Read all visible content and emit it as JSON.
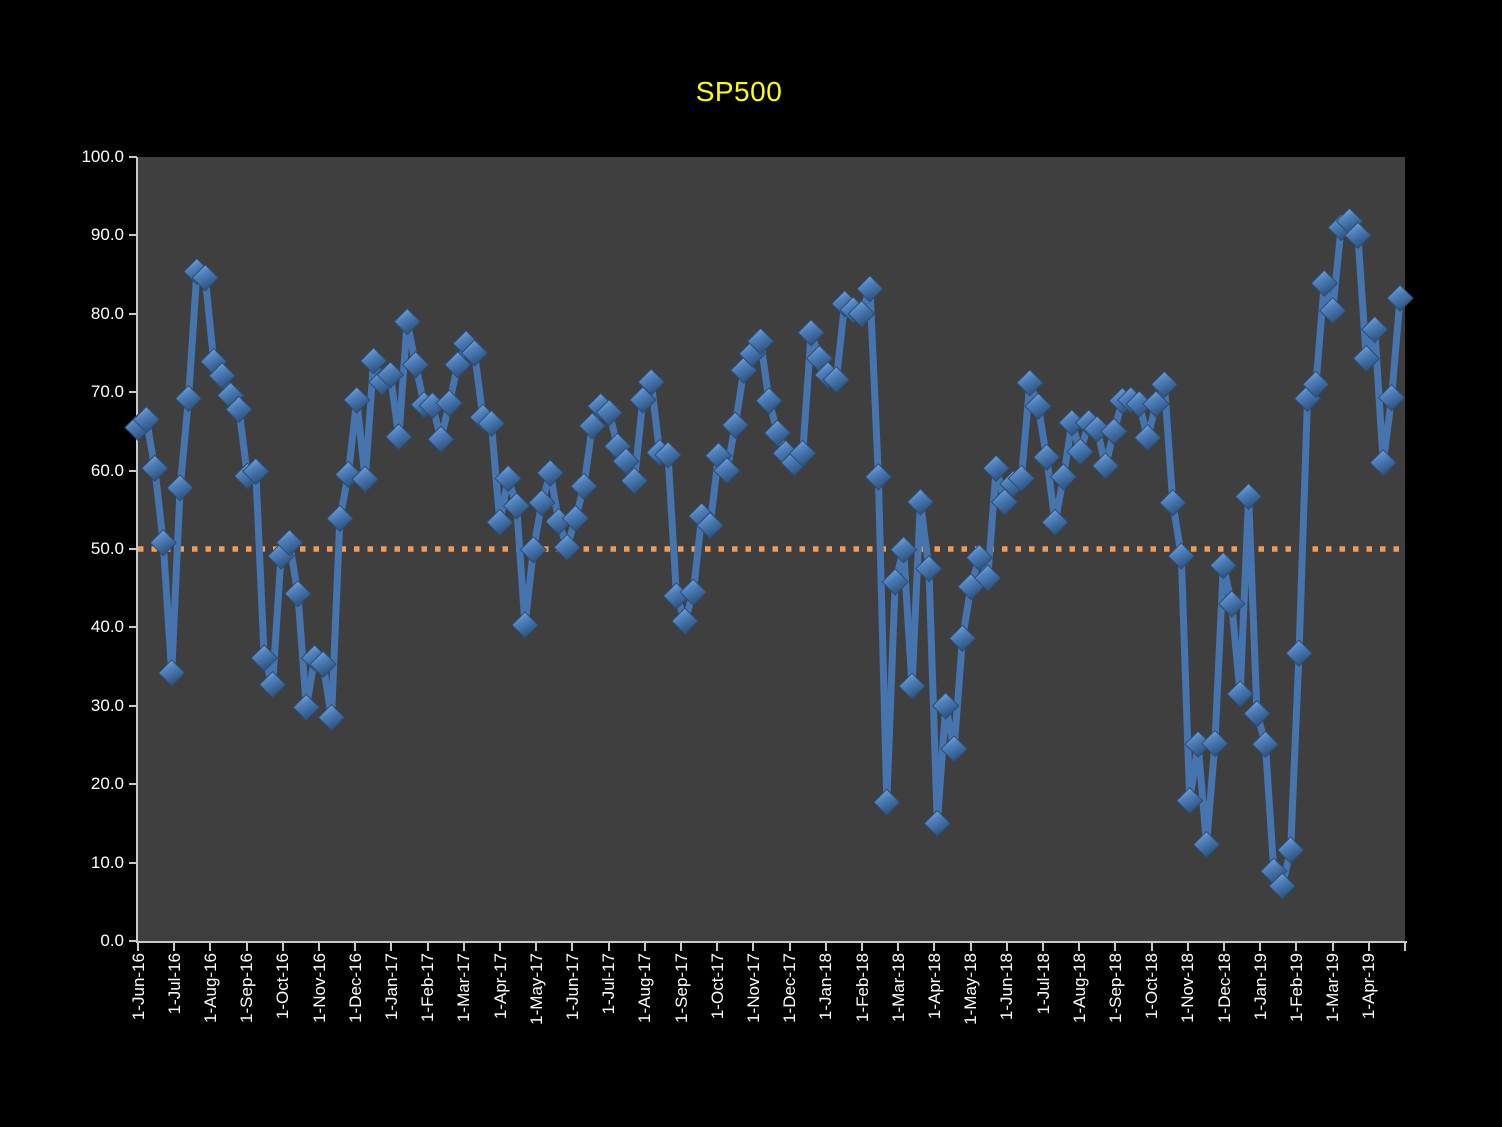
{
  "title": "SP500",
  "chart_data": {
    "type": "line",
    "title": "SP500",
    "xlabel": "",
    "ylabel": "",
    "grid": "off",
    "legend": "none",
    "ylim": [
      0,
      100
    ],
    "y_tick_labels": [
      "0.0",
      "10.0",
      "20.0",
      "30.0",
      "40.0",
      "50.0",
      "60.0",
      "70.0",
      "80.0",
      "90.0",
      "100.0"
    ],
    "x_tick_labels": [
      "1-Jun-16",
      "1-Jul-16",
      "1-Aug-16",
      "1-Sep-16",
      "1-Oct-16",
      "1-Nov-16",
      "1-Dec-16",
      "1-Jan-17",
      "1-Feb-17",
      "1-Mar-17",
      "1-Apr-17",
      "1-May-17",
      "1-Jun-17",
      "1-Jul-17",
      "1-Aug-17",
      "1-Sep-17",
      "1-Oct-17",
      "1-Nov-17",
      "1-Dec-17",
      "1-Jan-18",
      "1-Feb-18",
      "1-Mar-18",
      "1-Apr-18",
      "1-May-18",
      "1-Jun-18",
      "1-Jul-18",
      "1-Aug-18",
      "1-Sep-18",
      "1-Oct-18",
      "1-Nov-18",
      "1-Dec-18",
      "1-Jan-19",
      "1-Feb-19",
      "1-Mar-19",
      "1-Apr-19"
    ],
    "reference_line": {
      "value": 50.0,
      "style": "dotted",
      "color": "#F29B57"
    },
    "series": [
      {
        "name": "SP500",
        "frequency": "weekly",
        "marker": "diamond-3d",
        "color": "#4F81BD",
        "values": [
          65.5,
          66.5,
          60.3,
          50.8,
          34.2,
          57.8,
          69.2,
          85.4,
          84.6,
          73.9,
          72.1,
          69.6,
          67.8,
          59.3,
          59.9,
          36.1,
          32.7,
          49.1,
          50.8,
          44.3,
          29.8,
          36.1,
          35.3,
          28.5,
          53.9,
          59.5,
          69.0,
          58.9,
          74.0,
          71.3,
          72.2,
          64.3,
          79.0,
          73.5,
          68.4,
          68.3,
          64.0,
          68.6,
          73.5,
          76.2,
          75.0,
          66.8,
          66.0,
          53.4,
          59.0,
          55.5,
          40.3,
          49.9,
          55.9,
          59.7,
          53.5,
          50.2,
          53.9,
          58.0,
          65.7,
          68.2,
          67.4,
          63.1,
          61.2,
          58.7,
          69.0,
          71.3,
          62.3,
          62.0,
          44.0,
          40.8,
          44.5,
          54.2,
          53.0,
          61.9,
          60.0,
          65.8,
          72.8,
          74.9,
          76.5,
          68.9,
          64.8,
          62.2,
          61.0,
          62.2,
          77.6,
          74.3,
          72.2,
          71.6,
          81.3,
          80.5,
          80.0,
          83.2,
          59.2,
          17.7,
          45.8,
          49.9,
          32.5,
          56.0,
          47.5,
          15.0,
          30.0,
          24.5,
          38.6,
          45.2,
          48.9,
          46.3,
          60.3,
          56.0,
          58.3,
          59.0,
          71.2,
          68.2,
          61.7,
          53.4,
          59.2,
          66.1,
          62.4,
          66.1,
          65.3,
          60.6,
          65.0,
          68.9,
          69.0,
          68.5,
          64.2,
          68.5,
          71.0,
          55.9,
          49.1,
          17.9,
          25.1,
          12.3,
          25.2,
          47.9,
          43.0,
          31.5,
          56.7,
          29.0,
          25.1,
          8.9,
          7.0,
          11.6,
          36.7,
          69.2,
          71.0,
          83.9,
          80.4,
          91.0,
          91.8,
          90.0,
          74.3,
          78.0,
          61.0,
          69.3,
          82.0
        ]
      }
    ],
    "colors": {
      "page_background": "#000000",
      "plot_background": "#3F3F3F",
      "series_line": "#4574AE",
      "marker_light": "#93BAE9",
      "marker_mid": "#4E80BC",
      "marker_dark": "#2C507A",
      "marker_edge": "#2B4D73",
      "reference_line": "#F29B57",
      "title_text": "#FFFF00",
      "axis_text": "#FFFFFF",
      "axis_line": "#C9C9C9"
    }
  }
}
